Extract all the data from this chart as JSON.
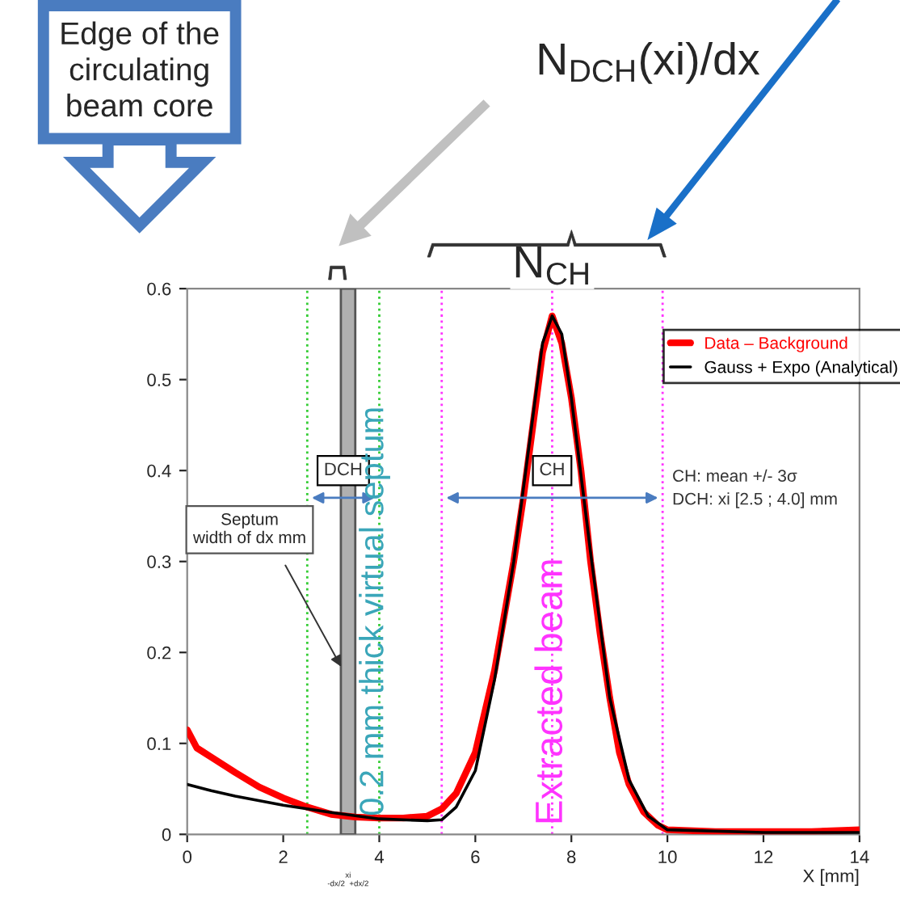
{
  "chart_data": {
    "type": "line",
    "xlabel": "X [mm]",
    "series": [
      {
        "name": "Data – Background",
        "color": "#ff0000",
        "line_style": "solid",
        "x": [
          0,
          0.2,
          0.5,
          1,
          1.5,
          2,
          2.5,
          3,
          3.5,
          4,
          4.5,
          5,
          5.3,
          5.6,
          6,
          6.4,
          6.8,
          7.0,
          7.2,
          7.4,
          7.6,
          7.8,
          8.0,
          8.2,
          8.4,
          8.6,
          8.8,
          9.0,
          9.2,
          9.5,
          9.8,
          10,
          11,
          12,
          13,
          14
        ],
        "values": [
          0.115,
          0.095,
          0.085,
          0.068,
          0.052,
          0.04,
          0.03,
          0.022,
          0.019,
          0.018,
          0.018,
          0.02,
          0.028,
          0.045,
          0.09,
          0.18,
          0.3,
          0.37,
          0.45,
          0.53,
          0.57,
          0.54,
          0.48,
          0.4,
          0.3,
          0.22,
          0.15,
          0.09,
          0.055,
          0.025,
          0.01,
          0.005,
          0.003,
          0.003,
          0.003,
          0.005
        ]
      },
      {
        "name": "Gauss + Expo (Analytical)",
        "color": "#000000",
        "line_style": "solid",
        "x": [
          0,
          0.5,
          1,
          2,
          3,
          4,
          5,
          5.3,
          5.6,
          6,
          6.4,
          6.8,
          7.2,
          7.4,
          7.6,
          7.8,
          8.0,
          8.4,
          8.8,
          9.2,
          9.6,
          10,
          12,
          14
        ],
        "values": [
          0.055,
          0.048,
          0.042,
          0.032,
          0.024,
          0.017,
          0.015,
          0.016,
          0.03,
          0.07,
          0.17,
          0.3,
          0.46,
          0.54,
          0.57,
          0.55,
          0.48,
          0.31,
          0.15,
          0.06,
          0.02,
          0.005,
          0.002,
          0.002
        ]
      }
    ],
    "xlim": [
      0,
      14
    ],
    "xticks": [
      0,
      2,
      4,
      6,
      8,
      10,
      12,
      14
    ],
    "ylim": [
      0,
      0.6
    ],
    "yticks": [
      {
        "value": 0,
        "label": "0"
      },
      0.1,
      0.2,
      0.3,
      0.4,
      0.5,
      0.6
    ],
    "grid": false,
    "legend": "top right",
    "marker": "none",
    "ref_lines": [
      {
        "axis": "x",
        "value": 2.5,
        "label": null,
        "color": "#33cc33",
        "line_style": "dotted"
      },
      {
        "axis": "x",
        "value": 4.0,
        "label": null,
        "color": "#33cc33",
        "line_style": "dotted"
      },
      {
        "axis": "x",
        "value": 5.3,
        "label": null,
        "color": "#ff33ff",
        "line_style": "dotted"
      },
      {
        "axis": "x",
        "value": 9.9,
        "label": null,
        "color": "#ff33ff",
        "line_style": "dotted"
      },
      {
        "axis": "x",
        "value": 7.6,
        "label": "Extracted beam",
        "color": "#ff33ff",
        "line_style": "dotted"
      }
    ],
    "bands": [
      {
        "axis": "x",
        "from": 3.2,
        "to": 3.5,
        "label": "0.2 mm thick virtual septum",
        "color": "#b0b0b0"
      }
    ],
    "annotations": [
      "Edge of the\ncirculating\nbeam core",
      "N$_{DCH}$(xi)/dx",
      "N$_{CH}$",
      {
        "text": "DCH",
        "x": 3.25,
        "y": 0.4
      },
      {
        "text": "CH",
        "x": 7.6,
        "y": 0.4
      },
      "Septum\nwidth of dx mm",
      "CH: mean +/- 3σ\nDCH: xi [2.5 ; 4.0] mm",
      "xi\n-dx/2  +dx/2"
    ]
  }
}
